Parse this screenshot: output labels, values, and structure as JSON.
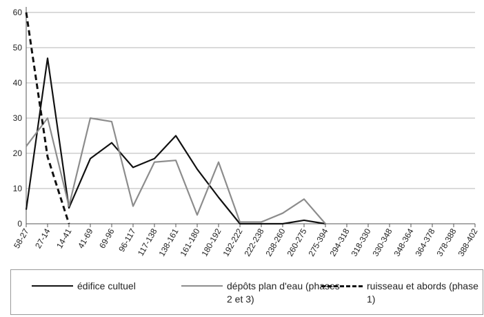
{
  "chart_data": {
    "type": "line",
    "categories": [
      "58-27",
      "27-14",
      "14-41",
      "41-69",
      "69-96",
      "96-117",
      "117-138",
      "138-161",
      "161-180",
      "180-192",
      "192-222",
      "222-238",
      "238-260",
      "260-275",
      "275-394",
      "294-318",
      "318-330",
      "330-348",
      "348-364",
      "364-378",
      "378-388",
      "388-402"
    ],
    "series": [
      {
        "name": "édifice cultuel",
        "color": "#111111",
        "dash": false,
        "values": [
          4,
          47,
          4.5,
          18.5,
          23,
          16,
          18.5,
          25,
          15.5,
          7.5,
          0,
          0,
          0,
          1,
          0,
          null,
          null,
          null,
          null,
          null,
          null,
          null
        ]
      },
      {
        "name": "dépôts plan d'eau (phases 2 et 3)",
        "color": "#8c8c8c",
        "dash": false,
        "values": [
          22,
          30,
          5,
          30,
          29,
          5,
          17.5,
          18,
          2.5,
          17.5,
          0.5,
          0.5,
          3,
          7,
          0,
          null,
          null,
          null,
          null,
          null,
          null,
          null
        ]
      },
      {
        "name": "ruisseau et abords (phase 1)",
        "color": "#111111",
        "dash": true,
        "values": [
          60,
          19,
          0,
          null,
          null,
          null,
          null,
          null,
          null,
          null,
          null,
          null,
          null,
          null,
          null,
          null,
          null,
          null,
          null,
          null,
          null,
          null
        ]
      }
    ],
    "ylim": [
      0,
      60
    ],
    "yticks": [
      0,
      10,
      20,
      30,
      40,
      50,
      60
    ],
    "grid": true
  }
}
